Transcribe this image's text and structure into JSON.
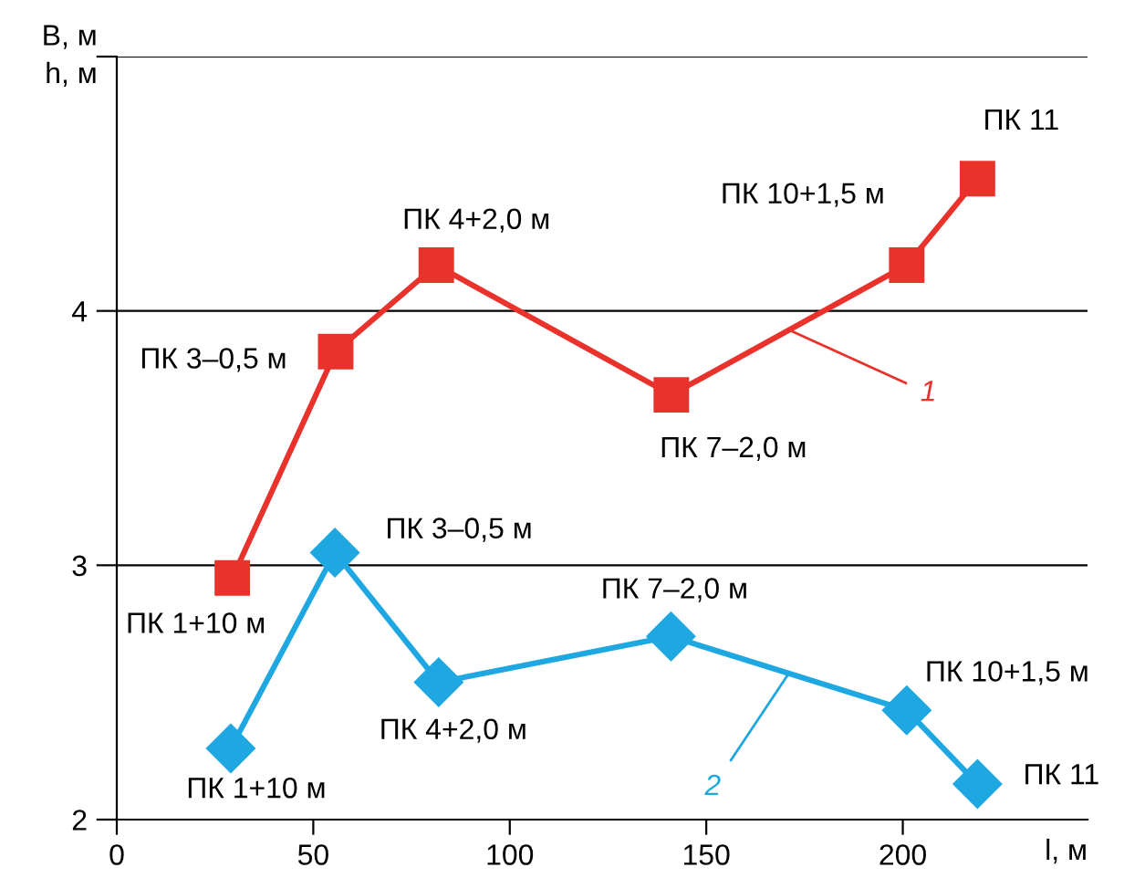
{
  "chart_data": {
    "type": "line",
    "xlabel": "l, м",
    "ylabel": "B, м\nh, м",
    "xlim": [
      0,
      247
    ],
    "xticks": [
      0,
      50,
      100,
      150,
      200
    ],
    "ylim": [
      2,
      5
    ],
    "yticks": [
      2,
      3,
      4,
      {
        "value": 5,
        "label": null
      }
    ],
    "grid": "y",
    "legend": false,
    "line_style": "solid",
    "series": [
      {
        "name": "1",
        "color": "#e8322b",
        "marker": "square",
        "x": [
          29.4,
          55.7,
          81.3,
          141.1,
          201,
          219
        ],
        "values": [
          2.95,
          3.84,
          4.18,
          3.67,
          4.18,
          4.52
        ]
      },
      {
        "name": "2",
        "color": "#1ea7e1",
        "marker": "diamond",
        "x": [
          29,
          55.5,
          81.9,
          141,
          201,
          219
        ],
        "values": [
          2.28,
          3.05,
          2.54,
          2.72,
          2.43,
          2.14
        ]
      }
    ],
    "annotations": [
      {
        "text": "ПК 1+10 м",
        "x": 29.4,
        "y": 2.95
      },
      {
        "text": "ПК 3–0,5 м",
        "x": 55.7,
        "y": 3.84
      },
      {
        "text": "ПК 4+2,0 м",
        "x": 81.3,
        "y": 4.18
      },
      {
        "text": "ПК 7–2,0 м",
        "x": 141.1,
        "y": 3.67
      },
      {
        "text": "ПК 10+1,5 м",
        "x": 201,
        "y": 4.18
      },
      {
        "text": "ПК 11",
        "x": 219,
        "y": 4.52
      },
      {
        "text": "ПК 1+10 м",
        "x": 29,
        "y": 2.28
      },
      {
        "text": "ПК 3–0,5 м",
        "x": 55.5,
        "y": 3.05
      },
      {
        "text": "ПК 4+2,0 м",
        "x": 81.9,
        "y": 2.54
      },
      {
        "text": "ПК 7–2,0 м",
        "x": 141,
        "y": 2.72
      },
      {
        "text": "ПК 10+1,5 м",
        "x": 201,
        "y": 2.43
      },
      {
        "text": "ПК 11",
        "x": 219,
        "y": 2.14
      }
    ]
  }
}
